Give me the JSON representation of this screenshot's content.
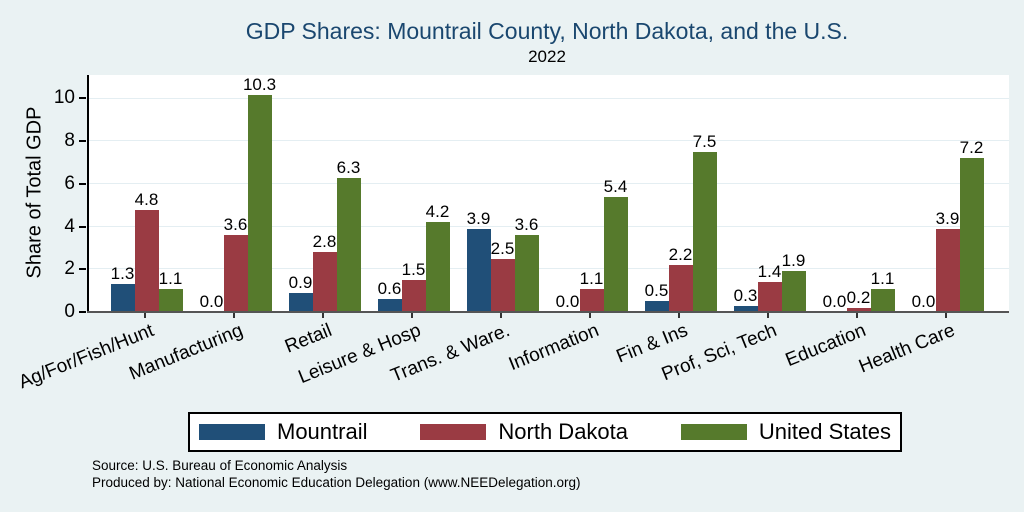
{
  "page": {
    "background": "#eaf2f3",
    "plot_background": "#ffffff",
    "gridline_color": "#e4eef2",
    "title_color": "#1a476f"
  },
  "chart_data": {
    "type": "bar",
    "title": "GDP Shares: Mountrail County, North Dakota, and the U.S.",
    "subtitle": "2022",
    "ylabel": "Share of Total GDP",
    "xlabel": "",
    "categories": [
      "Ag/For/Fish/Hunt",
      "Manufacturing",
      "Retail",
      "Leisure & Hosp",
      "Trans. & Ware.",
      "Information",
      "Fin & Ins",
      "Prof, Sci, Tech",
      "Education",
      "Health Care"
    ],
    "series": [
      {
        "name": "Mountrail",
        "color": "#204f78",
        "values": [
          1.3,
          0.0,
          0.9,
          0.6,
          3.9,
          0.0,
          0.5,
          0.3,
          0.0,
          0.0
        ]
      },
      {
        "name": "North Dakota",
        "color": "#9a3b43",
        "values": [
          4.8,
          3.6,
          2.8,
          1.5,
          2.5,
          1.1,
          2.2,
          1.4,
          0.2,
          3.9
        ]
      },
      {
        "name": "United States",
        "color": "#567a2c",
        "values": [
          1.1,
          10.3,
          6.3,
          4.2,
          3.6,
          5.4,
          7.5,
          1.9,
          1.1,
          7.2
        ]
      }
    ],
    "yticks": [
      0,
      2,
      4,
      6,
      8,
      10
    ],
    "ylim": [
      0,
      11.1
    ],
    "grid": true,
    "value_labels": true,
    "value_format": "one-decimal",
    "legend_position": "bottom"
  },
  "source_note": {
    "line1": "Source: U.S. Bureau of Economic Analysis",
    "line2": "Produced by: National Economic Education Delegation (www.NEEDelegation.org)"
  }
}
